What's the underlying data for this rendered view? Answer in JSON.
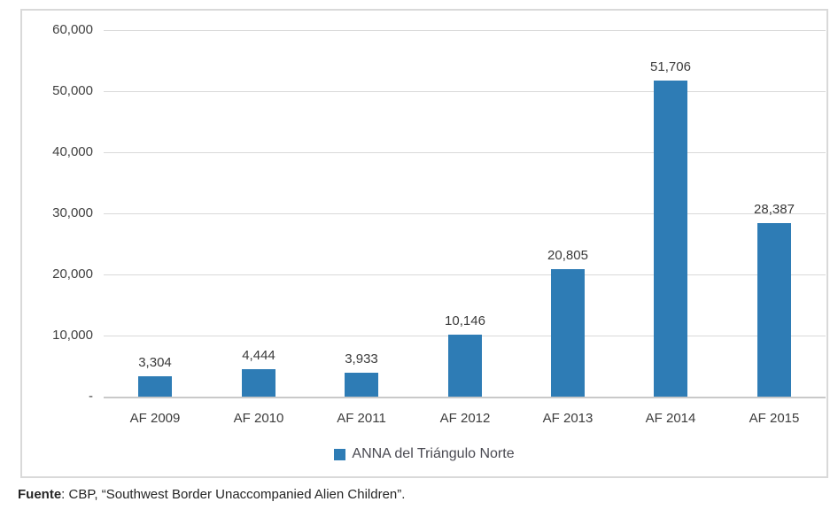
{
  "chart_data": {
    "type": "bar",
    "categories": [
      "AF 2009",
      "AF 2010",
      "AF 2011",
      "AF 2012",
      "AF 2013",
      "AF 2014",
      "AF 2015"
    ],
    "values": [
      3304,
      4444,
      3933,
      10146,
      20805,
      51706,
      28387
    ],
    "value_labels": [
      "3,304",
      "4,444",
      "3,933",
      "10,146",
      "20,805",
      "51,706",
      "28,387"
    ],
    "series_name": "ANNA del Triángulo Norte",
    "title": "",
    "xlabel": "",
    "ylabel": "",
    "ylim": [
      0,
      60000
    ],
    "ytick_interval": 10000,
    "ytick_labels": [
      "60,000",
      "50,000",
      "40,000",
      "30,000",
      "20,000",
      "10,000",
      "-"
    ],
    "grid": true,
    "legend_position": "bottom",
    "bar_color": "#2e7cb5"
  },
  "legend": {
    "label": "ANNA del Triángulo Norte"
  },
  "source": {
    "prefix": "Fuente",
    "text": ": CBP, “Southwest Border Unaccompanied Alien Children”."
  }
}
